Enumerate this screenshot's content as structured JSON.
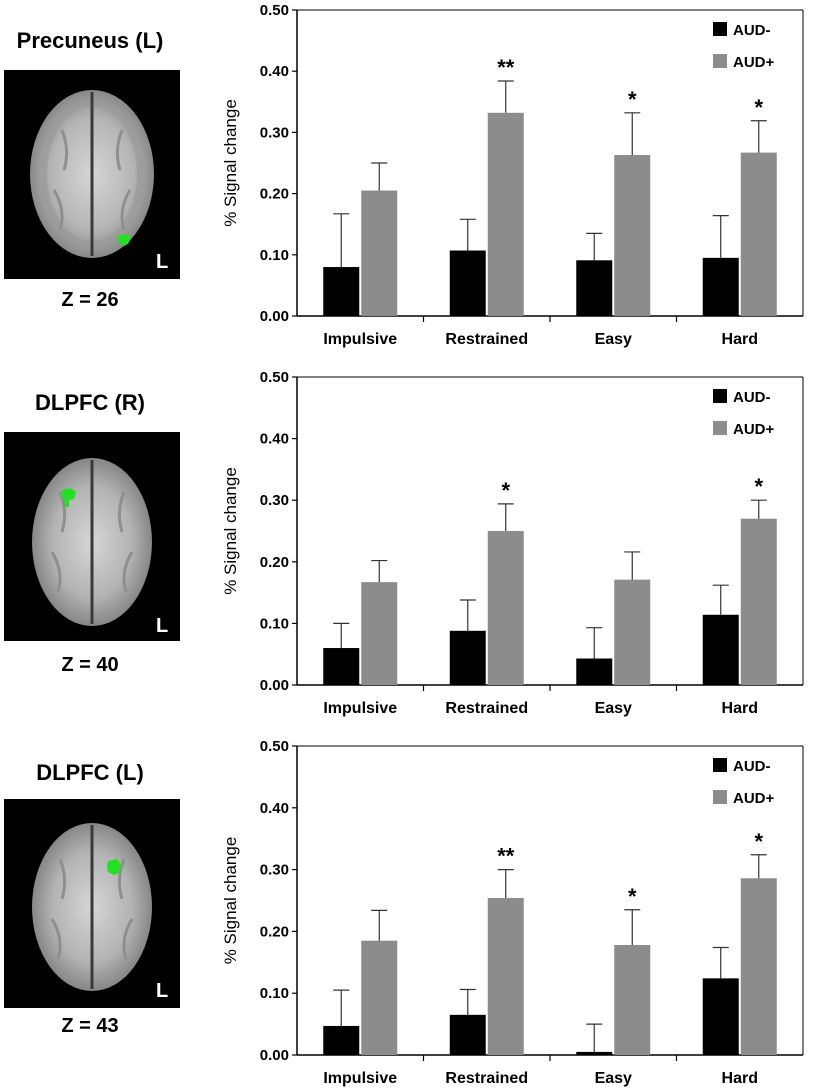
{
  "panels": [
    {
      "region": "Precuneus (L)",
      "slice": "Z = 26",
      "brain_letter": "L",
      "cluster": "left-posterior"
    },
    {
      "region": "DLPFC (R)",
      "slice": "Z = 40",
      "brain_letter": "L",
      "cluster": "right-anterior"
    },
    {
      "region": "DLPFC (L)",
      "slice": "Z = 43",
      "brain_letter": "L",
      "cluster": "left-anterior"
    }
  ],
  "colors": {
    "aud_minus": "#000000",
    "aud_plus": "#8c8c8c",
    "cluster": "#22e022"
  },
  "chart_data": [
    {
      "type": "bar",
      "categories": [
        "Impulsive",
        "Restrained",
        "Easy",
        "Hard"
      ],
      "ylabel": "% Signal change",
      "ylim": [
        0,
        0.5
      ],
      "yticks": [
        "0.00",
        "0.10",
        "0.20",
        "0.30",
        "0.40",
        "0.50"
      ],
      "legend_position": "top-right",
      "series": [
        {
          "name": "AUD-",
          "values": [
            0.08,
            0.107,
            0.091,
            0.095
          ],
          "errors": [
            0.087,
            0.051,
            0.044,
            0.069
          ]
        },
        {
          "name": "AUD+",
          "values": [
            0.205,
            0.332,
            0.263,
            0.267
          ],
          "errors": [
            0.045,
            0.052,
            0.069,
            0.052
          ]
        }
      ],
      "annotations": [
        "",
        "**",
        "*",
        "*"
      ]
    },
    {
      "type": "bar",
      "categories": [
        "Impulsive",
        "Restrained",
        "Easy",
        "Hard"
      ],
      "ylabel": "% Signal change",
      "ylim": [
        0,
        0.5
      ],
      "yticks": [
        "0.00",
        "0.10",
        "0.20",
        "0.30",
        "0.40",
        "0.50"
      ],
      "legend_position": "top-right",
      "series": [
        {
          "name": "AUD-",
          "values": [
            0.06,
            0.088,
            0.043,
            0.114
          ],
          "errors": [
            0.04,
            0.05,
            0.05,
            0.048
          ]
        },
        {
          "name": "AUD+",
          "values": [
            0.167,
            0.25,
            0.171,
            0.27
          ],
          "errors": [
            0.035,
            0.044,
            0.045,
            0.03
          ]
        }
      ],
      "annotations": [
        "",
        "*",
        "",
        "*"
      ]
    },
    {
      "type": "bar",
      "categories": [
        "Impulsive",
        "Restrained",
        "Easy",
        "Hard"
      ],
      "ylabel": "% Signal change",
      "ylim": [
        0,
        0.5
      ],
      "yticks": [
        "0.00",
        "0.10",
        "0.20",
        "0.30",
        "0.40",
        "0.50"
      ],
      "legend_position": "top-right",
      "series": [
        {
          "name": "AUD-",
          "values": [
            0.047,
            0.065,
            0.005,
            0.124
          ],
          "errors": [
            0.058,
            0.041,
            0.045,
            0.05
          ]
        },
        {
          "name": "AUD+",
          "values": [
            0.185,
            0.254,
            0.178,
            0.286
          ],
          "errors": [
            0.049,
            0.046,
            0.057,
            0.038
          ]
        }
      ],
      "annotations": [
        "",
        "**",
        "*",
        "*"
      ]
    }
  ]
}
